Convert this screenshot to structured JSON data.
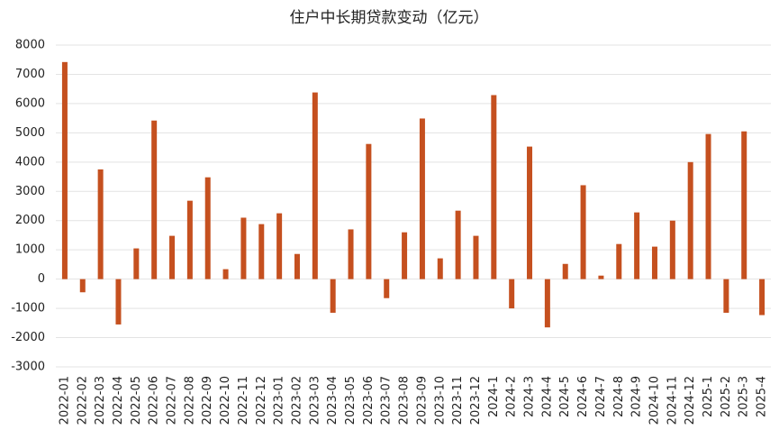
{
  "chart_data": {
    "type": "bar",
    "title": "住户中长期贷款变动（亿元）",
    "categories": [
      "2022-01",
      "2022-02",
      "2022-03",
      "2022-04",
      "2022-05",
      "2022-06",
      "2022-07",
      "2022-08",
      "2022-09",
      "2022-10",
      "2022-11",
      "2022-12",
      "2023-01",
      "2023-02",
      "2023-03",
      "2023-04",
      "2023-05",
      "2023-06",
      "2023-07",
      "2023-08",
      "2023-09",
      "2023-10",
      "2023-11",
      "2023-12",
      "2024-1",
      "2024-2",
      "2024-3",
      "2024-4",
      "2024-5",
      "2024-6",
      "2024-7",
      "2024-8",
      "2024-9",
      "2024-10",
      "2024-11",
      "2024-12",
      "2025-1",
      "2025-2",
      "2025-3",
      "2025-4"
    ],
    "values": [
      7420,
      -450,
      3750,
      -1550,
      1050,
      5420,
      1480,
      2680,
      3480,
      340,
      2100,
      1880,
      2250,
      860,
      6380,
      -1150,
      1700,
      4620,
      -650,
      1600,
      5490,
      710,
      2340,
      1480,
      6290,
      -1000,
      4530,
      -1650,
      520,
      3210,
      120,
      1200,
      2280,
      1110,
      2000,
      4000,
      4960,
      -1150,
      5050,
      -1230
    ],
    "color": "#c5501f",
    "ylim": [
      -3000,
      8000
    ],
    "yticks": [
      -3000,
      -2000,
      -1000,
      0,
      1000,
      2000,
      3000,
      4000,
      5000,
      6000,
      7000,
      8000
    ],
    "grid": true
  }
}
